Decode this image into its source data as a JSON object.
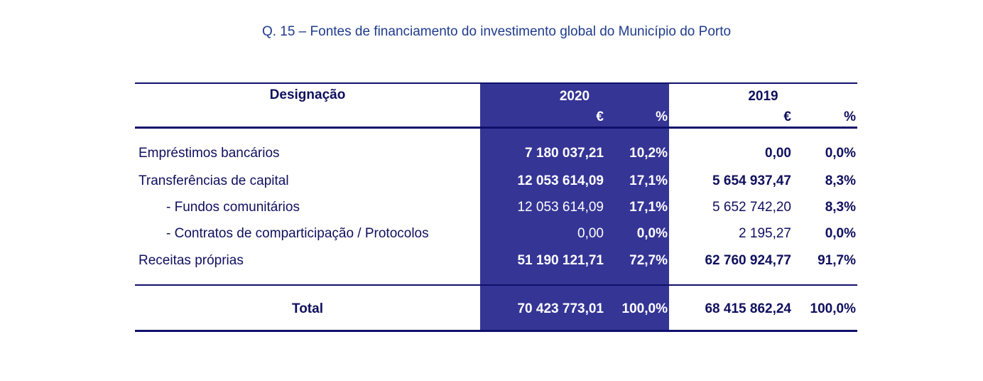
{
  "title": "Q. 15 – Fontes de financiamento do investimento global do Município do Porto",
  "header": {
    "designacao": "Designação",
    "year_a": "2020",
    "year_b": "2019",
    "euro": "€",
    "pct": "%"
  },
  "rows": [
    {
      "label": "Empréstimos bancários",
      "e2020": "7 180 037,21",
      "p2020": "10,2%",
      "e2019": "0,00",
      "p2019": "0,0%"
    },
    {
      "label": "Transferências de capital",
      "e2020": "12 053 614,09",
      "p2020": "17,1%",
      "e2019": "5 654 937,47",
      "p2019": "8,3%"
    },
    {
      "label": "- Fundos comunitários",
      "e2020": "12 053 614,09",
      "p2020": "17,1%",
      "e2019": "5 652 742,20",
      "p2019": "8,3%"
    },
    {
      "label": "- Contratos de comparticipação / Protocolos",
      "e2020": "0,00",
      "p2020": "0,0%",
      "e2019": "2 195,27",
      "p2019": "0,0%"
    },
    {
      "label": "Receitas próprias",
      "e2020": "51 190 121,71",
      "p2020": "72,7%",
      "e2019": "62 760 924,77",
      "p2019": "91,7%"
    }
  ],
  "total": {
    "label": "Total",
    "e2020": "70 423 773,01",
    "p2020": "100,0%",
    "e2019": "68 415 862,24",
    "p2019": "100,0%"
  },
  "colors": {
    "highlight": "#353596",
    "text": "#0f0f5e",
    "title": "#1f3b8c",
    "rule": "#10106b"
  }
}
